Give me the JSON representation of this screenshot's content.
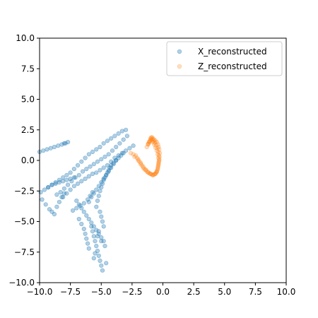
{
  "chart_data": {
    "type": "scatter",
    "title": "",
    "xlabel": "",
    "ylabel": "",
    "xlim": [
      -10,
      10
    ],
    "ylim": [
      -10,
      10
    ],
    "xticks": [
      -10,
      -7.5,
      -5,
      -2.5,
      0,
      2.5,
      5,
      7.5,
      10
    ],
    "yticks": [
      -10,
      -7.5,
      -5,
      -2.5,
      0,
      2.5,
      5,
      7.5,
      10
    ],
    "x_tick_labels": [
      "−10.0",
      "−7.5",
      "−5.0",
      "−2.5",
      "0.0",
      "2.5",
      "5.0",
      "7.5",
      "10.0"
    ],
    "y_tick_labels": [
      "−10.0",
      "−7.5",
      "−5.0",
      "−2.5",
      "0.0",
      "2.5",
      "5.0",
      "7.5",
      "10.0"
    ],
    "grid": false,
    "legend_position": "top-right",
    "series": [
      {
        "name": "X_reconstructed",
        "color": "#1f77b4",
        "alpha": 0.35,
        "x": [
          -10.0,
          -9.7,
          -9.4,
          -9.1,
          -8.8,
          -8.5,
          -8.2,
          -8.0,
          -7.9,
          -7.7,
          -9.3,
          -9.0,
          -8.7,
          -8.4,
          -8.1,
          -7.8,
          -7.5,
          -7.2,
          -6.9,
          -6.6,
          -6.3,
          -6.0,
          -5.7,
          -5.4,
          -5.1,
          -4.8,
          -4.5,
          -4.2,
          -3.9,
          -3.6,
          -3.3,
          -3.0,
          -8.6,
          -8.3,
          -8.0,
          -7.7,
          -7.4,
          -7.1,
          -6.8,
          -6.5,
          -6.2,
          -5.9,
          -5.6,
          -5.3,
          -5.0,
          -4.7,
          -4.4,
          -4.1,
          -3.8,
          -3.5,
          -3.2,
          -2.9,
          -8.1,
          -7.8,
          -7.5,
          -7.2,
          -6.9,
          -6.6,
          -6.3,
          -6.0,
          -5.7,
          -5.4,
          -5.1,
          -4.8,
          -4.5,
          -4.2,
          -3.9,
          -3.6,
          -3.3,
          -3.0,
          -2.7,
          -2.4,
          -9.9,
          -9.6,
          -9.3,
          -9.0,
          -8.7,
          -8.4,
          -8.1,
          -7.8,
          -7.5,
          -7.2,
          -9.8,
          -9.5,
          -9.2,
          -9.0,
          -8.8,
          -8.6,
          -8.4,
          -8.2,
          -8.0,
          -6.8,
          -6.6,
          -6.4,
          -6.3,
          -6.2,
          -6.1,
          -6.0,
          -5.8,
          -5.7,
          -5.6,
          -5.5,
          -5.4,
          -5.3,
          -5.2,
          -5.1,
          -5.0,
          -4.9,
          -5.4,
          -5.3,
          -5.2,
          -5.1,
          -5.0,
          -4.9,
          -4.8,
          -4.7,
          -4.6,
          -4.5,
          -4.4,
          -4.3,
          -4.2,
          -4.0,
          -3.8,
          -3.6,
          -3.4,
          -3.2,
          -6.0,
          -5.8,
          -5.6,
          -5.4,
          -5.2,
          -5.0,
          -4.8,
          -4.6,
          -4.4,
          -4.2,
          -4.0,
          -3.8,
          -7.0,
          -6.8,
          -6.6,
          -6.4,
          -6.2,
          -6.0,
          -5.8,
          -5.6,
          -5.4,
          -5.2,
          -5.0,
          -4.8,
          -5.1,
          -5.0,
          -4.9,
          -4.8,
          -5.2,
          -5.3,
          -5.0,
          -4.7,
          -5.5,
          -5.6,
          -4.6,
          -5.7,
          -5.9,
          -6.1,
          -6.4,
          -6.7,
          -7.0,
          -7.3
        ],
        "y": [
          0.7,
          0.8,
          0.9,
          1.0,
          1.1,
          1.2,
          1.3,
          1.4,
          1.4,
          1.5,
          -2.2,
          -2.0,
          -1.8,
          -1.6,
          -1.4,
          -1.2,
          -1.0,
          -0.7,
          -0.4,
          -0.1,
          0.2,
          0.5,
          0.7,
          0.9,
          1.1,
          1.4,
          1.6,
          1.8,
          2.0,
          2.2,
          2.4,
          2.5,
          -2.8,
          -2.6,
          -2.3,
          -2.0,
          -1.7,
          -1.4,
          -1.2,
          -0.9,
          -0.7,
          -0.5,
          -0.3,
          -0.1,
          0.1,
          0.3,
          0.5,
          0.8,
          1.1,
          1.4,
          1.7,
          2.0,
          -3.0,
          -2.7,
          -2.4,
          -2.1,
          -1.9,
          -1.7,
          -1.5,
          -1.3,
          -1.1,
          -1.0,
          -0.8,
          -0.6,
          -0.4,
          -0.1,
          0.2,
          0.4,
          0.6,
          0.8,
          1.0,
          1.2,
          -2.6,
          -2.4,
          -2.2,
          -2.0,
          -1.9,
          -1.8,
          -1.7,
          -1.6,
          -1.5,
          -1.4,
          -3.2,
          -3.6,
          -4.0,
          -4.2,
          -4.4,
          -3.8,
          -3.4,
          -3.0,
          -2.7,
          -4.8,
          -5.2,
          -5.6,
          -6.0,
          -6.4,
          -6.8,
          -7.2,
          -5.4,
          -5.8,
          -6.2,
          -6.6,
          -7.0,
          -7.4,
          -7.8,
          -8.2,
          -8.6,
          -9.0,
          -3.8,
          -3.3,
          -2.9,
          -2.5,
          -2.2,
          -1.9,
          -1.6,
          -1.4,
          -1.2,
          -1.0,
          -0.8,
          -0.6,
          -0.4,
          -0.2,
          0.0,
          0.2,
          0.4,
          0.6,
          -3.4,
          -3.0,
          -2.7,
          -2.4,
          -2.1,
          -1.8,
          -1.5,
          -1.2,
          -0.9,
          -0.6,
          -0.3,
          0.0,
          -3.3,
          -3.6,
          -3.9,
          -4.2,
          -4.5,
          -4.8,
          -5.1,
          -5.4,
          -5.7,
          -6.0,
          -6.3,
          -6.6,
          -4.2,
          -4.6,
          -5.0,
          -5.4,
          -5.8,
          -6.2,
          -6.6,
          -7.0,
          -7.6,
          -8.0,
          -8.4,
          -2.6,
          -2.9,
          -3.2,
          -3.5,
          -3.7,
          -3.9,
          -4.1
        ]
      },
      {
        "name": "Z_reconstructed",
        "color": "#ff7f0e",
        "alpha": 0.25,
        "x": [
          -2.6,
          -2.3,
          -2.0,
          -1.8,
          -1.6,
          -1.4,
          -1.2,
          -1.0,
          -0.8,
          -0.6,
          -0.5,
          -0.4,
          -0.35,
          -0.3,
          -0.28,
          -0.25,
          -0.3,
          -0.35,
          -0.4,
          -0.5,
          -0.6,
          -0.7,
          -0.8,
          -0.9,
          -1.0,
          -1.1,
          -1.2,
          -1.3,
          -2.4,
          -2.1,
          -1.9,
          -1.7,
          -1.5,
          -1.3,
          -1.1,
          -0.9,
          -0.7,
          -0.55,
          -0.45,
          -0.4,
          -0.35,
          -0.3,
          -0.32,
          -0.38,
          -0.45,
          -0.55,
          -0.65,
          -0.75,
          -0.85,
          -0.95,
          -1.05,
          -1.15,
          -2.2,
          -2.0,
          -1.8,
          -1.6,
          -1.4,
          -1.2,
          -1.0,
          -0.8,
          -0.65,
          -0.5,
          -0.42,
          -0.36,
          -0.33,
          -0.36,
          -0.42,
          -0.5,
          -0.6,
          -0.7,
          -0.8,
          -0.9,
          -1.0,
          -1.1,
          -1.2
        ],
        "y": [
          0.6,
          0.3,
          0.0,
          -0.3,
          -0.6,
          -0.8,
          -1.0,
          -1.1,
          -1.2,
          -1.1,
          -0.9,
          -0.6,
          -0.3,
          0.0,
          0.3,
          0.6,
          0.9,
          1.1,
          1.3,
          1.5,
          1.6,
          1.7,
          1.8,
          1.9,
          1.7,
          1.5,
          1.3,
          1.1,
          0.5,
          0.2,
          -0.1,
          -0.4,
          -0.7,
          -0.9,
          -1.05,
          -1.15,
          -1.15,
          -1.0,
          -0.8,
          -0.5,
          -0.2,
          0.1,
          0.4,
          0.7,
          1.0,
          1.25,
          1.45,
          1.6,
          1.75,
          1.85,
          1.6,
          1.4,
          0.4,
          0.1,
          -0.2,
          -0.5,
          -0.75,
          -0.95,
          -1.1,
          -1.2,
          -1.1,
          -0.95,
          -0.7,
          -0.4,
          -0.1,
          0.2,
          0.5,
          0.8,
          1.05,
          1.3,
          1.5,
          1.65,
          1.8,
          1.55,
          1.35
        ]
      }
    ]
  }
}
